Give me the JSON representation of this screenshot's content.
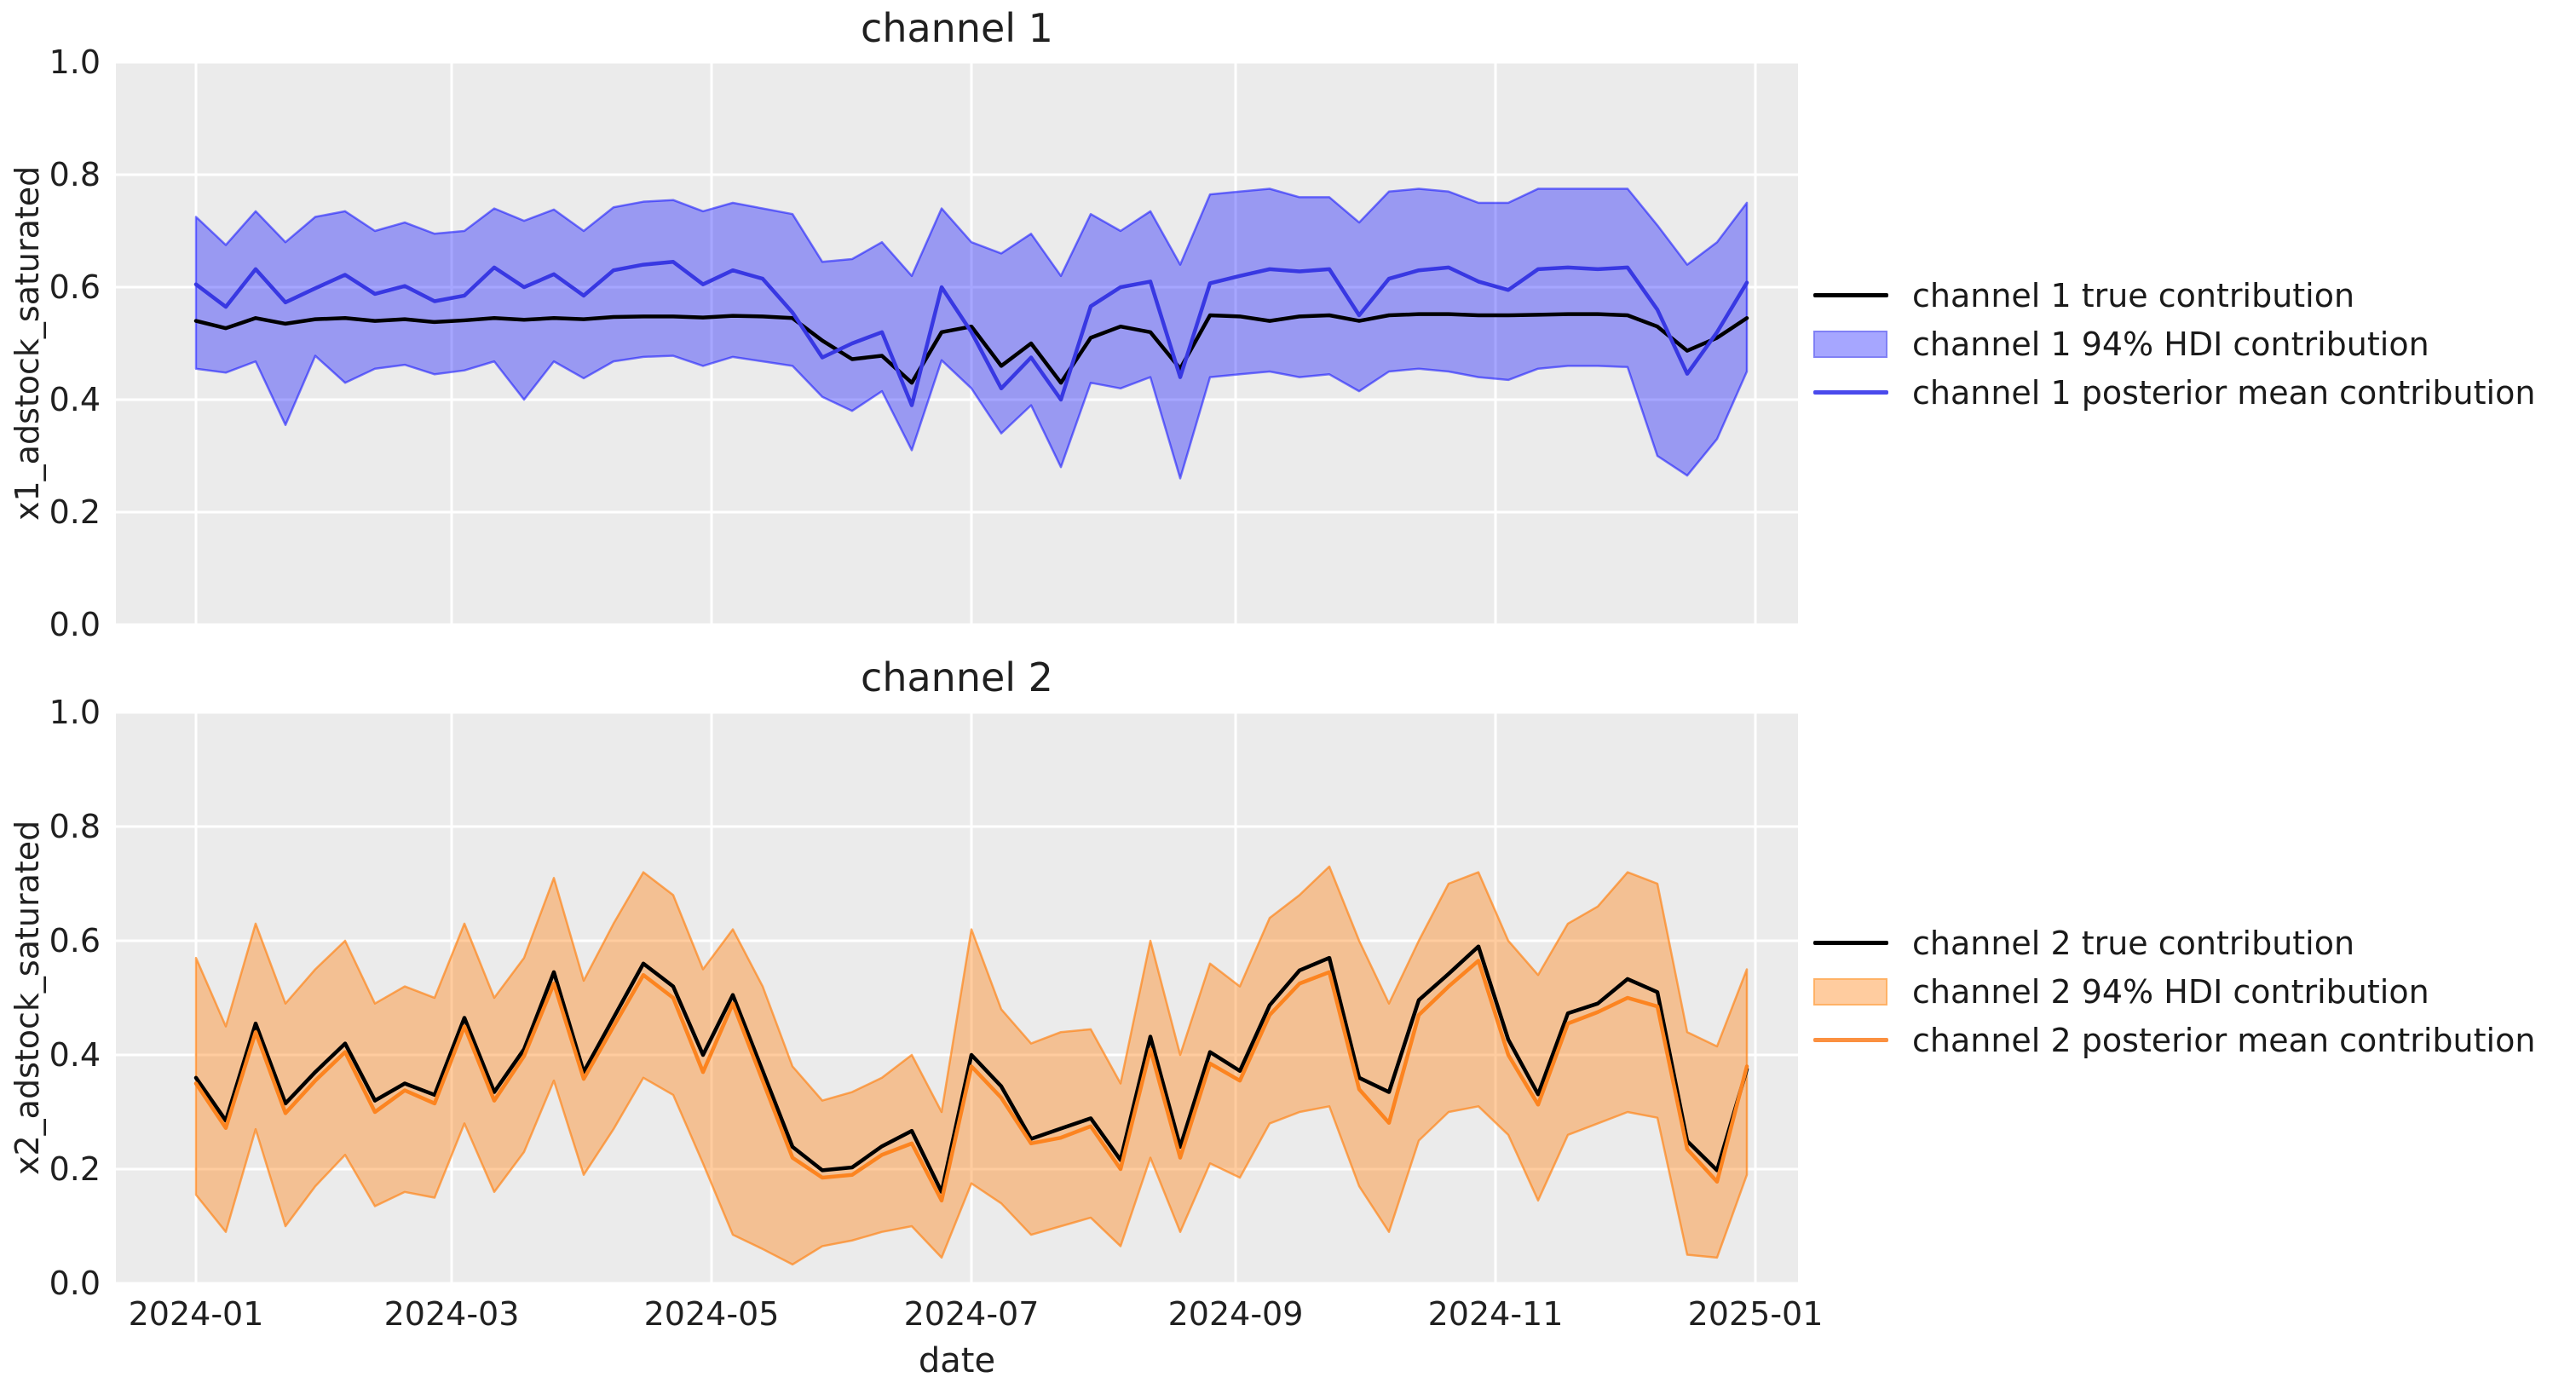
{
  "figure": {
    "xlabel": "date",
    "xticks": [
      "2024-01",
      "2024-03",
      "2024-05",
      "2024-07",
      "2024-09",
      "2024-11",
      "2025-01"
    ],
    "xtick_dates": [
      "2024-01-01",
      "2024-03-01",
      "2024-05-01",
      "2024-07-01",
      "2024-09-01",
      "2024-11-01",
      "2025-01-01"
    ],
    "yticks": [
      "1.0",
      "0.8",
      "0.6",
      "0.4",
      "0.2",
      "0.0"
    ],
    "background_color": "#ffffff",
    "axes_background_color": "#ebebeb",
    "grid_color": "#ffffff"
  },
  "chart_data": [
    {
      "type": "line",
      "title": "channel 1",
      "ylabel": "x1_adstock_saturated",
      "xlabel": "",
      "ylim": [
        0.0,
        1.0
      ],
      "x_start": "2024-01-01",
      "x_dates": [
        "2024-01-01",
        "2024-01-08",
        "2024-01-15",
        "2024-01-22",
        "2024-01-29",
        "2024-02-05",
        "2024-02-12",
        "2024-02-19",
        "2024-02-26",
        "2024-03-04",
        "2024-03-11",
        "2024-03-18",
        "2024-03-25",
        "2024-04-01",
        "2024-04-08",
        "2024-04-15",
        "2024-04-22",
        "2024-04-29",
        "2024-05-06",
        "2024-05-13",
        "2024-05-20",
        "2024-05-27",
        "2024-06-03",
        "2024-06-10",
        "2024-06-17",
        "2024-06-24",
        "2024-07-01",
        "2024-07-08",
        "2024-07-15",
        "2024-07-22",
        "2024-07-29",
        "2024-08-05",
        "2024-08-12",
        "2024-08-19",
        "2024-08-26",
        "2024-09-02",
        "2024-09-09",
        "2024-09-16",
        "2024-09-23",
        "2024-09-30",
        "2024-10-07",
        "2024-10-14",
        "2024-10-21",
        "2024-10-28",
        "2024-11-04",
        "2024-11-11",
        "2024-11-18",
        "2024-11-25",
        "2024-12-02",
        "2024-12-09",
        "2024-12-16",
        "2024-12-23",
        "2024-12-30"
      ],
      "series": [
        {
          "name": "channel 1 true contribution",
          "color": "#000000",
          "values": [
            0.54,
            0.527,
            0.545,
            0.535,
            0.543,
            0.545,
            0.54,
            0.543,
            0.538,
            0.541,
            0.545,
            0.542,
            0.545,
            0.543,
            0.547,
            0.548,
            0.548,
            0.546,
            0.549,
            0.548,
            0.545,
            0.505,
            0.472,
            0.478,
            0.43,
            0.52,
            0.53,
            0.46,
            0.5,
            0.43,
            0.51,
            0.53,
            0.52,
            0.455,
            0.55,
            0.548,
            0.54,
            0.548,
            0.55,
            0.54,
            0.55,
            0.552,
            0.552,
            0.55,
            0.55,
            0.551,
            0.552,
            0.552,
            0.55,
            0.53,
            0.487,
            0.51,
            0.545
          ]
        },
        {
          "name": "channel 1 posterior mean contribution",
          "color": "#3838e2",
          "values": [
            0.605,
            0.565,
            0.632,
            0.573,
            0.598,
            0.622,
            0.588,
            0.602,
            0.575,
            0.585,
            0.635,
            0.6,
            0.623,
            0.585,
            0.63,
            0.64,
            0.645,
            0.605,
            0.63,
            0.615,
            0.555,
            0.475,
            0.5,
            0.52,
            0.39,
            0.6,
            0.52,
            0.42,
            0.475,
            0.4,
            0.566,
            0.6,
            0.61,
            0.44,
            0.607,
            0.62,
            0.632,
            0.628,
            0.632,
            0.55,
            0.615,
            0.63,
            0.635,
            0.61,
            0.595,
            0.632,
            0.635,
            0.632,
            0.635,
            0.56,
            0.446,
            0.52,
            0.608
          ]
        }
      ],
      "band": {
        "name": "channel 1 94% HDI contribution",
        "fill": "rgba(0,0,255,0.35)",
        "edge": "rgba(0,0,255,0.5)",
        "upper": [
          0.725,
          0.675,
          0.735,
          0.68,
          0.725,
          0.735,
          0.7,
          0.715,
          0.695,
          0.7,
          0.74,
          0.718,
          0.738,
          0.7,
          0.742,
          0.752,
          0.755,
          0.735,
          0.75,
          0.74,
          0.73,
          0.645,
          0.65,
          0.68,
          0.62,
          0.74,
          0.68,
          0.66,
          0.695,
          0.62,
          0.73,
          0.7,
          0.735,
          0.64,
          0.765,
          0.77,
          0.775,
          0.76,
          0.76,
          0.715,
          0.77,
          0.775,
          0.77,
          0.75,
          0.75,
          0.775,
          0.775,
          0.775,
          0.775,
          0.71,
          0.64,
          0.68,
          0.75
        ],
        "lower": [
          0.455,
          0.448,
          0.468,
          0.355,
          0.478,
          0.43,
          0.455,
          0.462,
          0.445,
          0.452,
          0.468,
          0.4,
          0.468,
          0.438,
          0.468,
          0.476,
          0.478,
          0.46,
          0.476,
          0.468,
          0.46,
          0.405,
          0.38,
          0.415,
          0.31,
          0.47,
          0.42,
          0.34,
          0.39,
          0.28,
          0.43,
          0.42,
          0.44,
          0.26,
          0.44,
          0.445,
          0.45,
          0.44,
          0.445,
          0.415,
          0.45,
          0.455,
          0.45,
          0.44,
          0.435,
          0.455,
          0.46,
          0.46,
          0.458,
          0.3,
          0.265,
          0.33,
          0.45
        ]
      },
      "legend": [
        {
          "label": "channel 1 true contribution",
          "type": "line",
          "color": "#000000"
        },
        {
          "label": "channel 1 94% HDI contribution",
          "type": "patch",
          "fill": "#a6a6ff",
          "edge": "#8080f5"
        },
        {
          "label": "channel 1 posterior mean contribution",
          "type": "line",
          "color": "#4a4aec"
        }
      ]
    },
    {
      "type": "line",
      "title": "channel 2",
      "ylabel": "x2_adstock_saturated",
      "xlabel": "date",
      "ylim": [
        0.0,
        1.0
      ],
      "x_start": "2024-01-01",
      "x_dates": [
        "2024-01-01",
        "2024-01-08",
        "2024-01-15",
        "2024-01-22",
        "2024-01-29",
        "2024-02-05",
        "2024-02-12",
        "2024-02-19",
        "2024-02-26",
        "2024-03-04",
        "2024-03-11",
        "2024-03-18",
        "2024-03-25",
        "2024-04-01",
        "2024-04-08",
        "2024-04-15",
        "2024-04-22",
        "2024-04-29",
        "2024-05-06",
        "2024-05-13",
        "2024-05-20",
        "2024-05-27",
        "2024-06-03",
        "2024-06-10",
        "2024-06-17",
        "2024-06-24",
        "2024-07-01",
        "2024-07-08",
        "2024-07-15",
        "2024-07-22",
        "2024-07-29",
        "2024-08-05",
        "2024-08-12",
        "2024-08-19",
        "2024-08-26",
        "2024-09-02",
        "2024-09-09",
        "2024-09-16",
        "2024-09-23",
        "2024-09-30",
        "2024-10-07",
        "2024-10-14",
        "2024-10-21",
        "2024-10-28",
        "2024-11-04",
        "2024-11-11",
        "2024-11-18",
        "2024-11-25",
        "2024-12-02",
        "2024-12-09",
        "2024-12-16",
        "2024-12-23",
        "2024-12-30"
      ],
      "series": [
        {
          "name": "channel 2 true contribution",
          "color": "#000000",
          "values": [
            0.36,
            0.285,
            0.455,
            0.315,
            0.37,
            0.42,
            0.32,
            0.35,
            0.33,
            0.465,
            0.335,
            0.41,
            0.545,
            0.37,
            0.465,
            0.56,
            0.52,
            0.4,
            0.505,
            0.372,
            0.239,
            0.198,
            0.203,
            0.24,
            0.267,
            0.16,
            0.4,
            0.345,
            0.253,
            0.271,
            0.289,
            0.216,
            0.432,
            0.239,
            0.405,
            0.372,
            0.487,
            0.548,
            0.57,
            0.36,
            0.335,
            0.496,
            0.542,
            0.59,
            0.427,
            0.331,
            0.473,
            0.49,
            0.533,
            0.51,
            0.249,
            0.198,
            0.375
          ]
        },
        {
          "name": "channel 2 posterior mean contribution",
          "color": "#fc8420",
          "values": [
            0.35,
            0.272,
            0.44,
            0.298,
            0.355,
            0.405,
            0.3,
            0.338,
            0.315,
            0.45,
            0.32,
            0.398,
            0.525,
            0.358,
            0.45,
            0.54,
            0.5,
            0.37,
            0.49,
            0.355,
            0.22,
            0.185,
            0.19,
            0.225,
            0.245,
            0.145,
            0.38,
            0.325,
            0.245,
            0.255,
            0.275,
            0.2,
            0.41,
            0.22,
            0.385,
            0.355,
            0.47,
            0.525,
            0.545,
            0.34,
            0.281,
            0.47,
            0.52,
            0.565,
            0.4,
            0.313,
            0.455,
            0.475,
            0.5,
            0.485,
            0.235,
            0.178,
            0.38
          ]
        }
      ],
      "band": {
        "name": "channel 2 94% HDI contribution",
        "fill": "rgba(255,127,14,0.4)",
        "edge": "rgba(255,127,14,0.65)",
        "upper": [
          0.57,
          0.45,
          0.63,
          0.49,
          0.55,
          0.6,
          0.49,
          0.52,
          0.5,
          0.63,
          0.5,
          0.57,
          0.71,
          0.53,
          0.63,
          0.72,
          0.68,
          0.55,
          0.62,
          0.52,
          0.38,
          0.32,
          0.335,
          0.36,
          0.4,
          0.3,
          0.62,
          0.48,
          0.42,
          0.44,
          0.445,
          0.35,
          0.6,
          0.4,
          0.56,
          0.52,
          0.64,
          0.68,
          0.73,
          0.6,
          0.49,
          0.6,
          0.7,
          0.72,
          0.6,
          0.54,
          0.63,
          0.66,
          0.72,
          0.7,
          0.44,
          0.415,
          0.55
        ],
        "lower": [
          0.155,
          0.09,
          0.27,
          0.1,
          0.17,
          0.225,
          0.135,
          0.16,
          0.15,
          0.28,
          0.16,
          0.23,
          0.355,
          0.19,
          0.27,
          0.36,
          0.33,
          0.21,
          0.085,
          0.06,
          0.033,
          0.065,
          0.075,
          0.09,
          0.1,
          0.045,
          0.175,
          0.14,
          0.085,
          0.1,
          0.115,
          0.065,
          0.22,
          0.09,
          0.21,
          0.185,
          0.28,
          0.3,
          0.31,
          0.17,
          0.09,
          0.25,
          0.3,
          0.31,
          0.26,
          0.145,
          0.26,
          0.28,
          0.3,
          0.29,
          0.05,
          0.045,
          0.19
        ]
      },
      "legend": [
        {
          "label": "channel 2 true contribution",
          "type": "line",
          "color": "#000000"
        },
        {
          "label": "channel 2 94% HDI contribution",
          "type": "patch",
          "fill": "#ffcc9f",
          "edge": "#ffb266"
        },
        {
          "label": "channel 2 posterior mean contribution",
          "type": "line",
          "color": "#fb9040"
        }
      ]
    }
  ]
}
